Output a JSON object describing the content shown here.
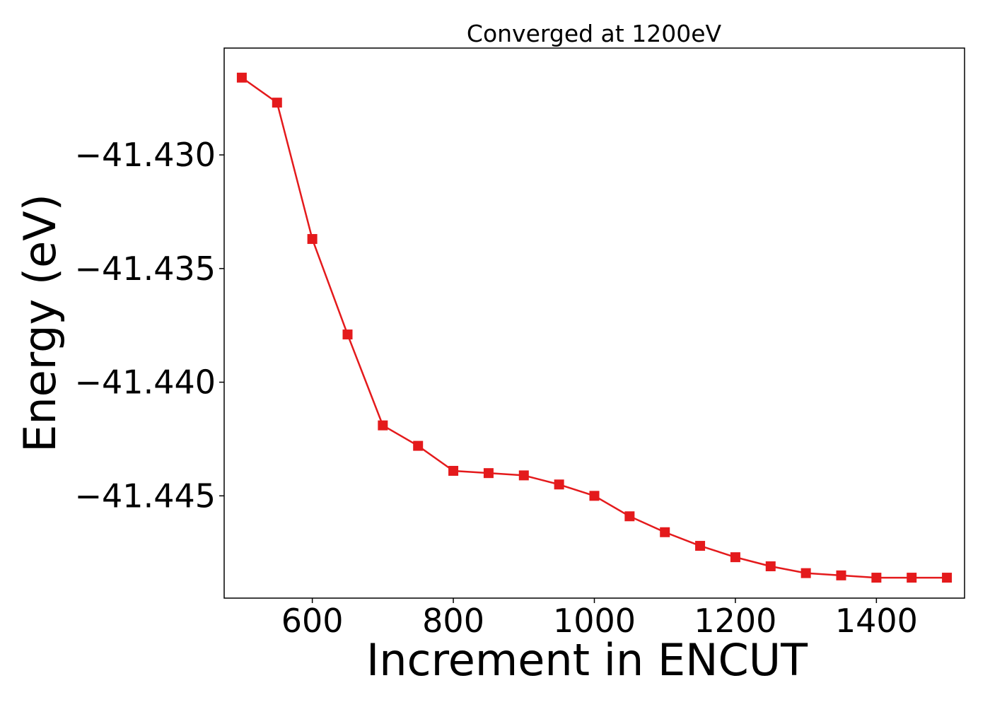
{
  "chart_data": {
    "type": "line",
    "title": "Converged at 1200eV",
    "xlabel": "Increment in ENCUT",
    "ylabel": "Energy (eV)",
    "xlim": [
      475,
      1525
    ],
    "ylim": [
      -41.4495,
      -41.4253
    ],
    "x_ticks": [
      600,
      800,
      1000,
      1200,
      1400
    ],
    "x_tick_labels": [
      "600",
      "800",
      "1000",
      "1200",
      "1400"
    ],
    "y_ticks": [
      -41.43,
      -41.435,
      -41.44,
      -41.445
    ],
    "y_tick_labels": [
      "−41.430",
      "−41.435",
      "−41.440",
      "−41.445"
    ],
    "grid": false,
    "series": [
      {
        "color": "#e41a1c",
        "marker": "square",
        "x": [
          500,
          550,
          600,
          650,
          700,
          750,
          800,
          850,
          900,
          950,
          1000,
          1050,
          1100,
          1150,
          1200,
          1250,
          1300,
          1350,
          1400,
          1450,
          1500
        ],
        "y": [
          -41.4266,
          -41.4277,
          -41.4337,
          -41.4379,
          -41.4419,
          -41.4428,
          -41.4439,
          -41.444,
          -41.4441,
          -41.4445,
          -41.445,
          -41.4459,
          -41.4466,
          -41.4472,
          -41.4477,
          -41.4481,
          -41.4484,
          -41.4485,
          -41.4486,
          -41.4486,
          -41.4486
        ]
      }
    ]
  }
}
